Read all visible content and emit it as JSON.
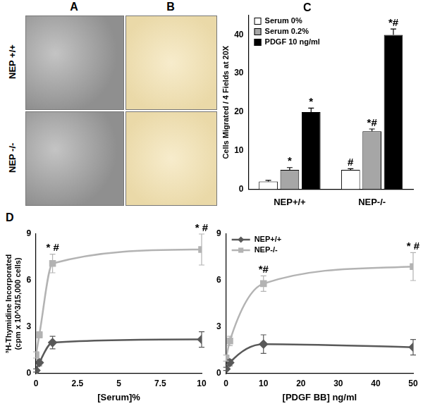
{
  "image_panels": [
    {
      "panel": "A"
    },
    {
      "panel": "B"
    }
  ],
  "row_labels": [
    "NEP +/+",
    "NEP -/-"
  ],
  "chart_data": [
    {
      "panel": "C",
      "type": "bar",
      "categories": [
        "NEP+/+",
        "NEP-/-"
      ],
      "y_label": "Cells Migrated / 4 Fields at 20X",
      "ylim": [
        0,
        45
      ],
      "yticks": [
        0,
        10,
        20,
        30,
        40
      ],
      "grid": false,
      "legend": "top-left",
      "series": [
        {
          "name": "Serum 0%",
          "color": "#ffffff",
          "values": [
            2,
            5
          ],
          "errors": [
            0.3,
            0.3
          ],
          "significance": [
            null,
            "#"
          ]
        },
        {
          "name": "Serum 0.2%",
          "color": "#a6a6a6",
          "values": [
            5,
            15
          ],
          "errors": [
            0.6,
            0.6
          ],
          "significance": [
            "*",
            "*#"
          ]
        },
        {
          "name": "PDGF 10 ng/ml",
          "color": "#000000",
          "values": [
            20,
            40
          ],
          "errors": [
            1,
            1.5
          ],
          "significance": [
            "*",
            "*#"
          ]
        }
      ]
    },
    {
      "panel": "D",
      "type": "line",
      "x_label": "[Serum]%",
      "y_label": [
        "³H-Thymidine Incorporated",
        "(cpm x 10^3/15,000 cells)"
      ],
      "xlim": [
        0,
        10
      ],
      "xticks": [
        0,
        2.5,
        5,
        7.5,
        10
      ],
      "ylim": [
        0,
        9
      ],
      "yticks": [
        0,
        3,
        6,
        9
      ],
      "grid": false,
      "x": [
        0,
        0.2,
        1,
        10
      ],
      "series": [
        {
          "name": "NEP+/+",
          "color": "#595959",
          "marker": "diamond",
          "line_style": "solid",
          "values": [
            0.2,
            0.7,
            2.0,
            2.2
          ],
          "errors": [
            0.1,
            0.2,
            0.4,
            0.5
          ]
        },
        {
          "name": "NEP-/-",
          "color": "#b3b3b3",
          "marker": "square",
          "line_style": "solid",
          "values": [
            1.2,
            2.5,
            7.1,
            8.0
          ],
          "errors": [
            0.2,
            0.2,
            0.6,
            1.0
          ],
          "significance": [
            null,
            null,
            "* #",
            "* #"
          ]
        }
      ]
    },
    {
      "type": "line",
      "x_label": "[PDGF BB] ng/ml",
      "xlim": [
        0,
        50
      ],
      "xticks": [
        0,
        10,
        20,
        30,
        40,
        50
      ],
      "ylim": [
        0,
        9
      ],
      "yticks": [
        0,
        3,
        6,
        9
      ],
      "grid": false,
      "legend": "top-left",
      "x": [
        0,
        1,
        10,
        50
      ],
      "series": [
        {
          "name": "NEP+/+",
          "color": "#595959",
          "marker": "diamond",
          "line_style": "solid",
          "values": [
            0.3,
            0.7,
            1.9,
            1.7
          ],
          "errors": [
            0.1,
            0.2,
            0.6,
            0.5
          ]
        },
        {
          "name": "NEP-/-",
          "color": "#b3b3b3",
          "marker": "square",
          "line_style": "solid",
          "values": [
            1.0,
            2.1,
            5.8,
            6.9
          ],
          "errors": [
            0.2,
            0.3,
            0.5,
            0.9
          ],
          "significance": [
            null,
            null,
            "*#",
            "* #"
          ]
        }
      ]
    }
  ]
}
